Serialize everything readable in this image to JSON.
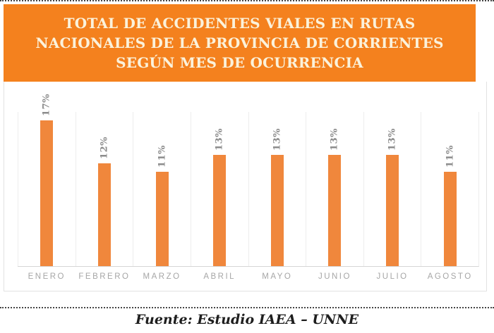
{
  "header": {
    "title_lines": [
      "TOTAL DE ACCIDENTES VIALES EN RUTAS",
      "NACIONALES DE LA PROVINCIA DE CORRIENTES",
      "SEGÚN MES DE OCURRENCIA"
    ],
    "bg_color": "#F4811E",
    "text_color": "#FBF2DB"
  },
  "chart_data": {
    "type": "bar",
    "title": "TOTAL DE ACCIDENTES VIALES EN RUTAS NACIONALES DE LA PROVINCIA DE CORRIENTES SEGÚN MES DE OCURRENCIA",
    "categories": [
      "ENERO",
      "FEBRERO",
      "MARZO",
      "ABRIL",
      "MAYO",
      "JUNIO",
      "JULIO",
      "AGOSTO"
    ],
    "values": [
      17,
      12,
      11,
      13,
      13,
      13,
      13,
      11
    ],
    "value_labels": [
      "17%",
      "12%",
      "11%",
      "13%",
      "13%",
      "13%",
      "13%",
      "11%"
    ],
    "xlabel": "",
    "ylabel": "",
    "ylim": [
      0,
      18
    ],
    "grid": "vertical-category-separators",
    "legend": "none",
    "bar_color": "#F0873C",
    "value_label_color": "#8C8C8C",
    "category_label_color": "#A6A6A6",
    "gridline_color": "#EDEDED",
    "baseline_color": "#D6D6D6"
  },
  "footer": {
    "source_text": "Fuente: Estudio IAEA – UNNE"
  }
}
